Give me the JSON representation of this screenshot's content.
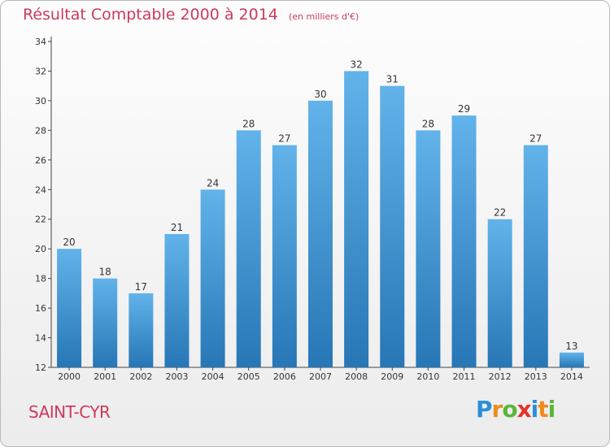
{
  "title": "Résultat Comptable 2000 à 2014",
  "unit": "(en milliers d'€)",
  "city": "SAINT-CYR",
  "logo": {
    "letters": [
      "P",
      "r",
      "o",
      "x",
      "i",
      "t",
      "i"
    ],
    "colors": [
      "#2a8fd6",
      "#f08a1c",
      "#5ab53a",
      "#e3352b",
      "#2a8fd6",
      "#f08a1c",
      "#5ab53a"
    ]
  },
  "colors": {
    "bar_top": "#62b3ea",
    "bar_bottom": "#2776b6",
    "axis": "#444444",
    "accent": "#cc3a5a"
  },
  "chart_data": {
    "type": "bar",
    "categories": [
      "2000",
      "2001",
      "2002",
      "2003",
      "2004",
      "2005",
      "2006",
      "2007",
      "2008",
      "2009",
      "2010",
      "2011",
      "2012",
      "2013",
      "2014"
    ],
    "values": [
      20,
      18,
      17,
      21,
      24,
      28,
      27,
      30,
      32,
      31,
      28,
      29,
      22,
      27,
      13
    ],
    "ylim": [
      12,
      34
    ],
    "yticks": [
      12,
      14,
      16,
      18,
      20,
      22,
      24,
      26,
      28,
      30,
      32,
      34
    ],
    "grid": false,
    "data_labels": true
  }
}
